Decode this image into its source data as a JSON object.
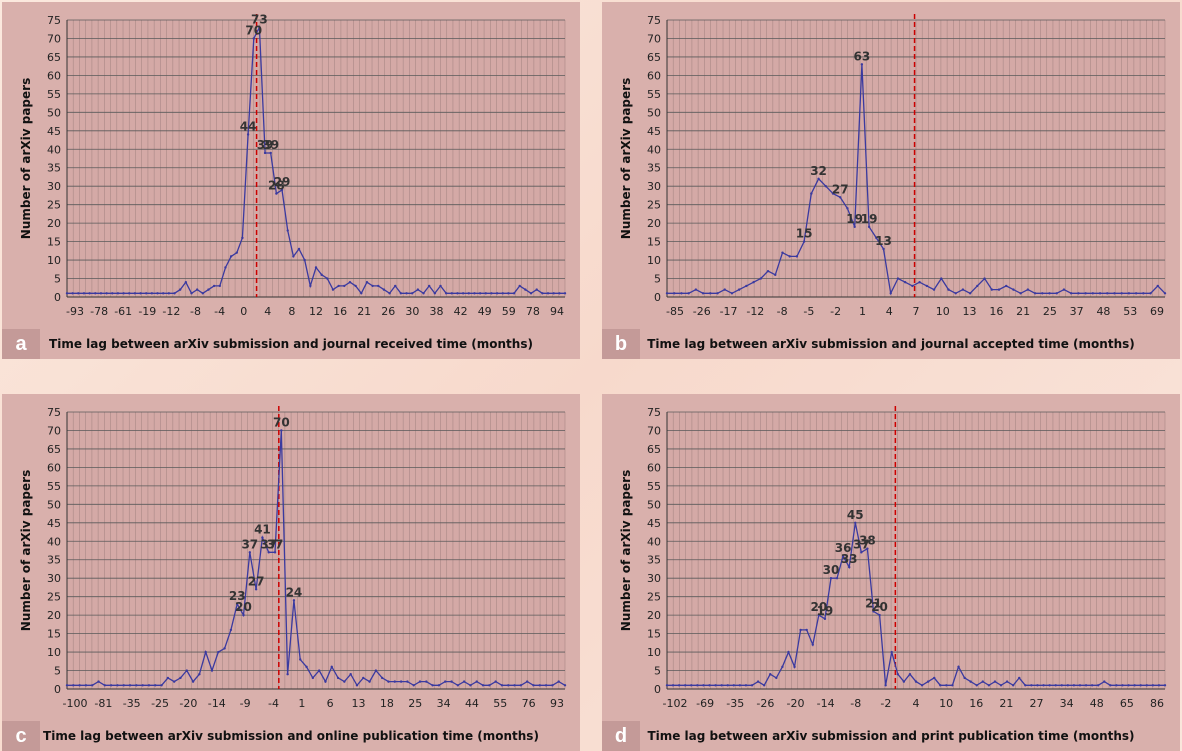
{
  "colors": {
    "line": "#3a3aa0",
    "dashed": "#cc0000",
    "grid": "#5a5a5a",
    "panel": "#d9b0ac"
  },
  "chart_data": [
    {
      "type": "line",
      "letter": "a",
      "xlabel": "Time lag between arXiv submission and journal received time (months)",
      "ylabel": "Number of arXiv papers",
      "ylim": [
        0,
        75
      ],
      "yticks_step": 5,
      "xticks": [
        "-93",
        "-78",
        "-61",
        "-19",
        "-12",
        "-8",
        "-4",
        "0",
        "4",
        "8",
        "12",
        "16",
        "21",
        "26",
        "30",
        "38",
        "42",
        "49",
        "59",
        "78",
        "94"
      ],
      "zero_index": 33.5,
      "values": [
        1,
        1,
        1,
        1,
        1,
        1,
        1,
        1,
        1,
        1,
        1,
        1,
        1,
        1,
        1,
        1,
        1,
        1,
        1,
        1,
        2,
        4,
        1,
        2,
        1,
        2,
        3,
        3,
        8,
        11,
        12,
        16,
        44,
        70,
        73,
        39,
        39,
        28,
        29,
        18,
        11,
        13,
        10,
        3,
        8,
        6,
        5,
        2,
        3,
        3,
        4,
        3,
        1,
        4,
        3,
        3,
        2,
        1,
        3,
        1,
        1,
        1,
        2,
        1,
        3,
        1,
        3,
        1,
        1,
        1,
        1,
        1,
        1,
        1,
        1,
        1,
        1,
        1,
        1,
        1,
        3,
        2,
        1,
        2,
        1,
        1,
        1,
        1,
        1
      ],
      "annotations": [
        {
          "i": 33,
          "text": "70"
        },
        {
          "i": 34,
          "text": "73"
        },
        {
          "i": 32,
          "text": "44"
        },
        {
          "i": 35,
          "text": "39"
        },
        {
          "i": 36,
          "text": "39"
        },
        {
          "i": 37,
          "text": "28"
        },
        {
          "i": 38,
          "text": "29"
        }
      ]
    },
    {
      "type": "line",
      "letter": "b",
      "xlabel": "Time lag between arXiv submission and journal accepted time (months)",
      "ylabel": "Number of arXiv papers",
      "ylim": [
        0,
        75
      ],
      "yticks_step": 5,
      "xticks": [
        "-85",
        "-26",
        "-17",
        "-12",
        "-8",
        "-5",
        "-2",
        "1",
        "4",
        "7",
        "10",
        "13",
        "16",
        "21",
        "25",
        "37",
        "48",
        "53",
        "69"
      ],
      "zero_index": 34.3,
      "values": [
        1,
        1,
        1,
        1,
        2,
        1,
        1,
        1,
        2,
        1,
        2,
        3,
        4,
        5,
        7,
        6,
        12,
        11,
        11,
        15,
        28,
        32,
        30,
        28,
        27,
        24,
        19,
        63,
        19,
        16,
        13,
        1,
        5,
        4,
        3,
        4,
        3,
        2,
        5,
        2,
        1,
        2,
        1,
        3,
        5,
        2,
        2,
        3,
        2,
        1,
        2,
        1,
        1,
        1,
        1,
        2,
        1,
        1,
        1,
        1,
        1,
        1,
        1,
        1,
        1,
        1,
        1,
        1,
        3,
        1
      ],
      "annotations": [
        {
          "i": 27,
          "text": "63"
        },
        {
          "i": 21,
          "text": "32"
        },
        {
          "i": 24,
          "text": "27"
        },
        {
          "i": 19,
          "text": "15"
        },
        {
          "i": 26,
          "text": "19"
        },
        {
          "i": 28,
          "text": "19"
        },
        {
          "i": 30,
          "text": "13"
        }
      ]
    },
    {
      "type": "line",
      "letter": "c",
      "xlabel": "Time lag between arXiv submission and online publication time (months)",
      "ylabel": "Number of arXiv papers",
      "ylim": [
        0,
        75
      ],
      "yticks_step": 5,
      "xticks": [
        "-100",
        "-81",
        "-35",
        "-25",
        "-20",
        "-14",
        "-9",
        "-4",
        "1",
        "6",
        "13",
        "18",
        "25",
        "34",
        "44",
        "55",
        "76",
        "93"
      ],
      "zero_index": 33.6,
      "values": [
        1,
        1,
        1,
        1,
        1,
        2,
        1,
        1,
        1,
        1,
        1,
        1,
        1,
        1,
        1,
        1,
        3,
        2,
        3,
        5,
        2,
        4,
        10,
        5,
        10,
        11,
        16,
        23,
        20,
        37,
        27,
        41,
        37,
        37,
        70,
        4,
        24,
        8,
        6,
        3,
        5,
        2,
        6,
        3,
        2,
        4,
        1,
        3,
        2,
        5,
        3,
        2,
        2,
        2,
        2,
        1,
        2,
        2,
        1,
        1,
        2,
        2,
        1,
        2,
        1,
        2,
        1,
        1,
        2,
        1,
        1,
        1,
        1,
        2,
        1,
        1,
        1,
        1,
        2,
        1
      ],
      "annotations": [
        {
          "i": 34,
          "text": "70"
        },
        {
          "i": 31,
          "text": "41"
        },
        {
          "i": 29,
          "text": "37"
        },
        {
          "i": 32,
          "text": "37"
        },
        {
          "i": 33,
          "text": "37"
        },
        {
          "i": 30,
          "text": "27"
        },
        {
          "i": 27,
          "text": "23"
        },
        {
          "i": 28,
          "text": "20"
        },
        {
          "i": 36,
          "text": "24"
        }
      ]
    },
    {
      "type": "line",
      "letter": "d",
      "xlabel": "Time lag between arXiv submission and print publication time (months)",
      "ylabel": "Number of arXiv papers",
      "ylim": [
        0,
        75
      ],
      "yticks_step": 5,
      "xticks": [
        "-102",
        "-69",
        "-35",
        "-26",
        "-20",
        "-14",
        "-8",
        "-2",
        "4",
        "10",
        "16",
        "21",
        "27",
        "34",
        "48",
        "65",
        "86"
      ],
      "zero_index": 37.6,
      "values": [
        1,
        1,
        1,
        1,
        1,
        1,
        1,
        1,
        1,
        1,
        1,
        1,
        1,
        1,
        1,
        2,
        1,
        4,
        3,
        6,
        10,
        6,
        16,
        16,
        12,
        20,
        19,
        30,
        30,
        36,
        33,
        45,
        37,
        38,
        21,
        20,
        1,
        10,
        4,
        2,
        4,
        2,
        1,
        2,
        3,
        1,
        1,
        1,
        6,
        3,
        2,
        1,
        2,
        1,
        2,
        1,
        2,
        1,
        3,
        1,
        1,
        1,
        1,
        1,
        1,
        1,
        1,
        1,
        1,
        1,
        1,
        1,
        2,
        1,
        1,
        1,
        1,
        1,
        1,
        1,
        1,
        1,
        1
      ],
      "annotations": [
        {
          "i": 31,
          "text": "45"
        },
        {
          "i": 29,
          "text": "36"
        },
        {
          "i": 33,
          "text": "38"
        },
        {
          "i": 32,
          "text": "37"
        },
        {
          "i": 30,
          "text": "33"
        },
        {
          "i": 27,
          "text": "30"
        },
        {
          "i": 25,
          "text": "20"
        },
        {
          "i": 26,
          "text": "19"
        },
        {
          "i": 34,
          "text": "21"
        },
        {
          "i": 35,
          "text": "20"
        }
      ]
    }
  ]
}
